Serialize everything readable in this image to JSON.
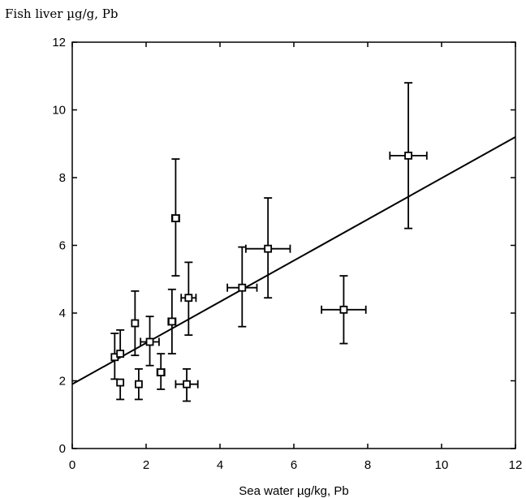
{
  "chart_data": {
    "type": "scatter",
    "ylabel": "Fish liver µg/g, Pb",
    "xlabel": "Sea water µg/kg, Pb",
    "xlim": [
      0,
      12
    ],
    "ylim": [
      0,
      12
    ],
    "x_ticks": [
      "0",
      "2",
      "4",
      "6",
      "8",
      "10",
      "12"
    ],
    "y_ticks": [
      "0",
      "2",
      "4",
      "6",
      "8",
      "10",
      "12"
    ],
    "grid": false,
    "points": [
      {
        "x": 1.15,
        "y": 2.7,
        "xerr": 0.0,
        "yerr_low": 0.65,
        "yerr_high": 0.7
      },
      {
        "x": 1.3,
        "y": 2.8,
        "xerr": 0.0,
        "yerr_low": 0.0,
        "yerr_high": 0.7
      },
      {
        "x": 1.3,
        "y": 1.95,
        "xerr": 0.0,
        "yerr_low": 0.5,
        "yerr_high": 0.0
      },
      {
        "x": 1.7,
        "y": 3.7,
        "xerr": 0.0,
        "yerr_low": 0.95,
        "yerr_high": 0.95
      },
      {
        "x": 1.8,
        "y": 1.9,
        "xerr": 0.0,
        "yerr_low": 0.45,
        "yerr_high": 0.45
      },
      {
        "x": 2.1,
        "y": 3.15,
        "xerr": 0.25,
        "yerr_low": 0.7,
        "yerr_high": 0.75
      },
      {
        "x": 2.4,
        "y": 2.25,
        "xerr": 0.1,
        "yerr_low": 0.5,
        "yerr_high": 0.55
      },
      {
        "x": 2.7,
        "y": 3.75,
        "xerr": 0.1,
        "yerr_low": 0.95,
        "yerr_high": 0.95
      },
      {
        "x": 2.8,
        "y": 6.8,
        "xerr": 0.1,
        "yerr_low": 1.7,
        "yerr_high": 1.75
      },
      {
        "x": 3.1,
        "y": 1.9,
        "xerr": 0.3,
        "yerr_low": 0.5,
        "yerr_high": 0.45
      },
      {
        "x": 3.15,
        "y": 4.45,
        "xerr": 0.2,
        "yerr_low": 1.1,
        "yerr_high": 1.05
      },
      {
        "x": 4.6,
        "y": 4.75,
        "xerr": 0.4,
        "yerr_low": 1.15,
        "yerr_high": 1.2
      },
      {
        "x": 5.3,
        "y": 5.9,
        "xerr": 0.6,
        "yerr_low": 1.45,
        "yerr_high": 1.5
      },
      {
        "x": 7.35,
        "y": 4.1,
        "xerr": 0.6,
        "yerr_low": 1.0,
        "yerr_high": 1.0
      },
      {
        "x": 9.1,
        "y": 8.65,
        "xerr": 0.5,
        "yerr_low": 2.15,
        "yerr_high": 2.15
      }
    ],
    "regression_line": {
      "x": [
        0,
        12
      ],
      "y": [
        1.9,
        9.2
      ]
    }
  }
}
